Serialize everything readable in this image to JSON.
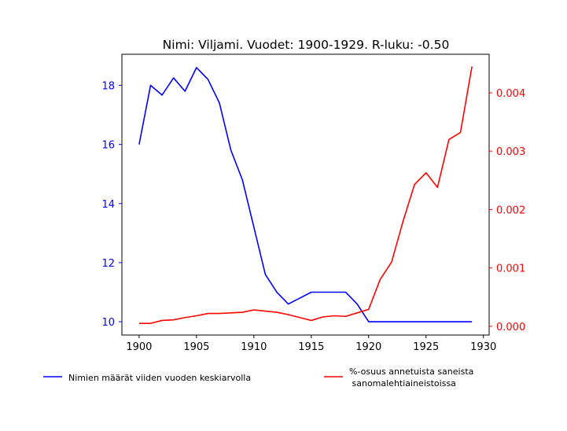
{
  "chart_data": {
    "type": "line",
    "title": "Nimi: Viljami. Vuodet: 1900-1929. R-luku: -0.50",
    "x": [
      1900,
      1901,
      1902,
      1903,
      1904,
      1905,
      1906,
      1907,
      1908,
      1909,
      1910,
      1911,
      1912,
      1913,
      1914,
      1915,
      1916,
      1917,
      1918,
      1919,
      1920,
      1921,
      1922,
      1923,
      1924,
      1925,
      1926,
      1927,
      1928,
      1929
    ],
    "x_ticks": [
      "1900",
      "1905",
      "1910",
      "1915",
      "1920",
      "1925",
      "1930"
    ],
    "xlim": [
      1898.5,
      1930.5
    ],
    "left_axis": {
      "ylim": [
        9.55,
        19.05
      ],
      "ticks": [
        "10",
        "12",
        "14",
        "16",
        "18"
      ],
      "color": "#0000ff"
    },
    "right_axis": {
      "ylim": [
        -0.00015,
        0.00466
      ],
      "ticks": [
        "0.000",
        "0.001",
        "0.002",
        "0.003",
        "0.004"
      ],
      "color": "#ff0000"
    },
    "series": [
      {
        "name": "Nimien määrät viiden vuoden keskiarvolla",
        "axis": "left",
        "color": "#0000ff",
        "values": [
          16.0,
          18.0,
          17.67,
          18.25,
          17.8,
          18.6,
          18.2,
          17.4,
          15.8,
          14.8,
          13.2,
          11.6,
          11.0,
          10.6,
          10.8,
          11.0,
          11.0,
          11.0,
          11.0,
          10.6,
          10.0,
          10.0,
          10.0,
          10.0,
          10.0,
          10.0,
          10.0,
          10.0,
          10.0,
          10.0
        ]
      },
      {
        "name": "%-osuus annetuista saneista\n sanomalehtiaineistoissa",
        "axis": "right",
        "color": "#ff0000",
        "values": [
          5e-05,
          5e-05,
          0.0001,
          0.00011,
          0.00015,
          0.00018,
          0.00022,
          0.00022,
          0.00023,
          0.00024,
          0.00028,
          0.00026,
          0.00024,
          0.0002,
          0.00015,
          0.0001,
          0.00016,
          0.00018,
          0.00017,
          0.00023,
          0.00029,
          0.0008,
          0.0011,
          0.0018,
          0.00243,
          0.00263,
          0.00238,
          0.0032,
          0.00332,
          0.00445
        ]
      }
    ],
    "legend": {
      "placement": "bottom",
      "labels": [
        "Nimien määrät viiden vuoden keskiarvolla",
        "%-osuus annetuista saneista",
        " sanomalehtiaineistoissa"
      ]
    }
  }
}
